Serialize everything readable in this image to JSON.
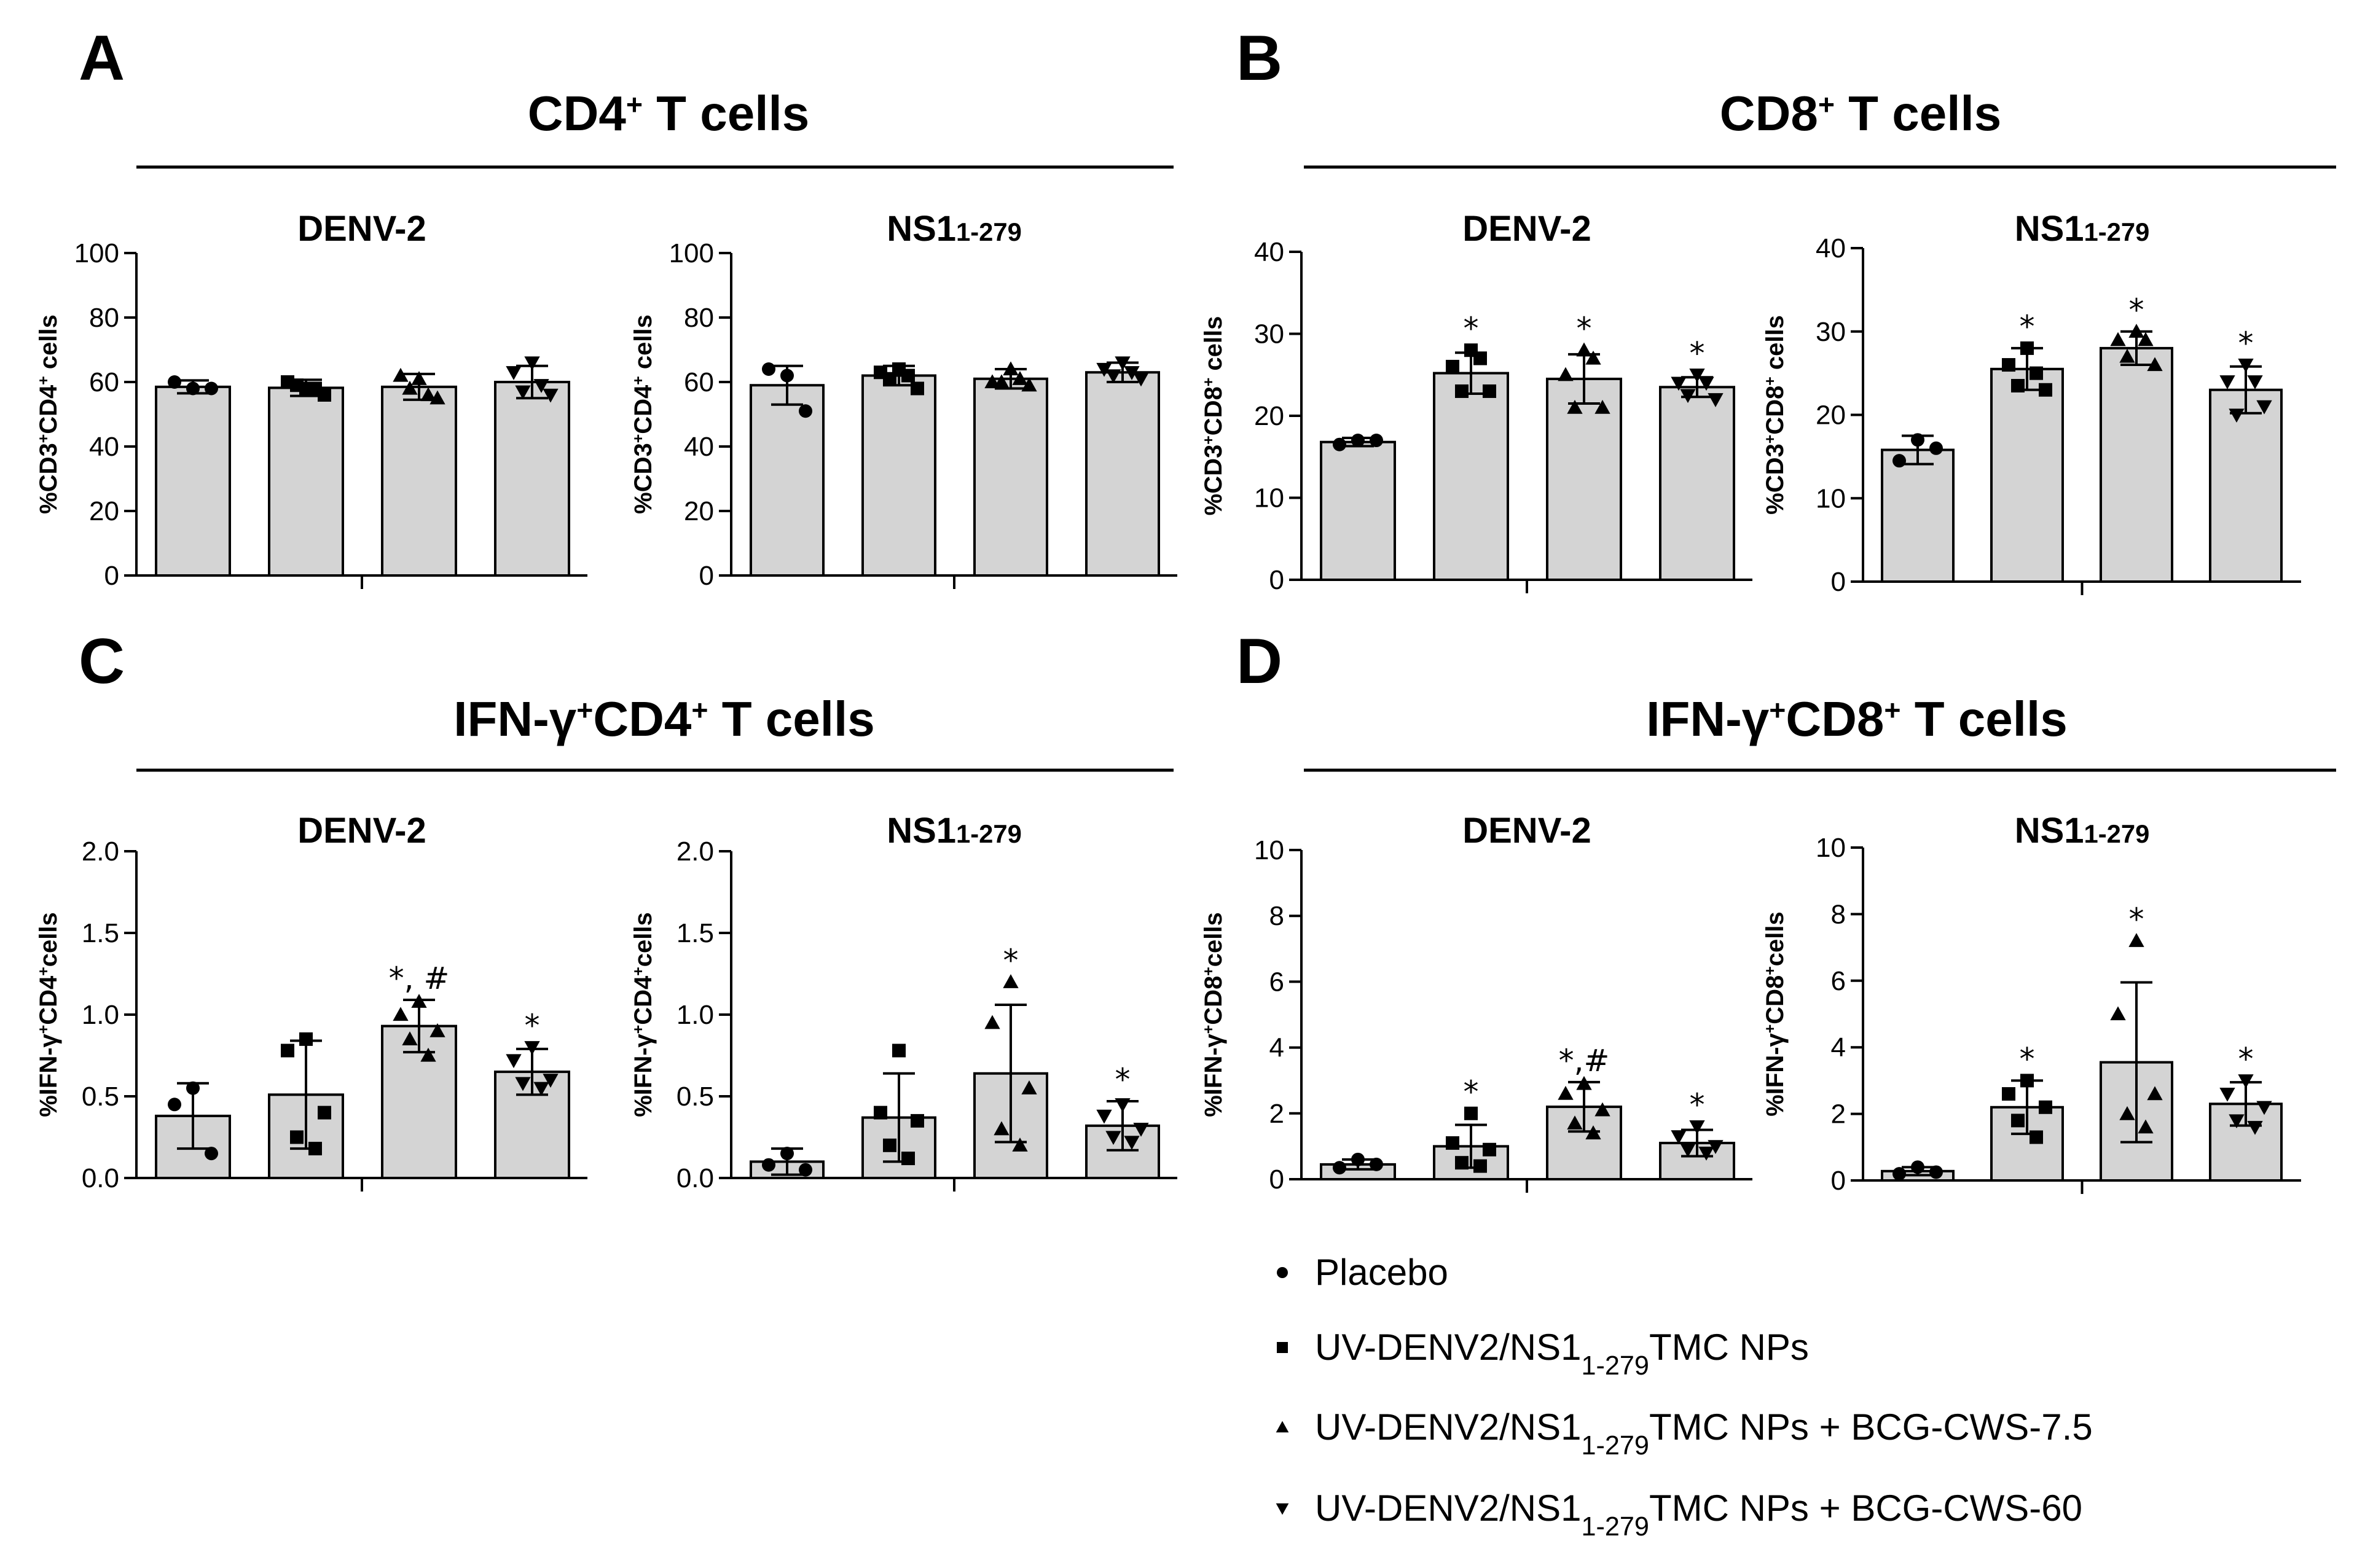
{
  "figure": {
    "panels": [
      {
        "letter": "A",
        "title_parts": [
          {
            "t": "CD4"
          },
          {
            "t": "+",
            "sup": true
          },
          {
            "t": " T cells"
          }
        ]
      },
      {
        "letter": "B",
        "title_parts": [
          {
            "t": "CD8"
          },
          {
            "t": "+",
            "sup": true
          },
          {
            "t": " T cells"
          }
        ]
      },
      {
        "letter": "C",
        "title_parts": [
          {
            "t": "IFN-γ"
          },
          {
            "t": "+",
            "sup": true
          },
          {
            "t": "CD4"
          },
          {
            "t": "+",
            "sup": true
          },
          {
            "t": " T cells"
          }
        ]
      },
      {
        "letter": "D",
        "title_parts": [
          {
            "t": "IFN-γ"
          },
          {
            "t": "+",
            "sup": true
          },
          {
            "t": "CD8"
          },
          {
            "t": "+",
            "sup": true
          },
          {
            "t": " T cells"
          }
        ]
      }
    ],
    "ylabel_parts": {
      "cd4": [
        {
          "t": "%CD3"
        },
        {
          "t": "+",
          "sup": true
        },
        {
          "t": "CD4"
        },
        {
          "t": "+",
          "sup": true
        },
        {
          "t": " cells"
        }
      ],
      "cd8": [
        {
          "t": "%CD3"
        },
        {
          "t": "+",
          "sup": true
        },
        {
          "t": "CD8"
        },
        {
          "t": "+",
          "sup": true
        },
        {
          "t": " cells"
        }
      ],
      "ifn_cd4": [
        {
          "t": "%IFN-γ"
        },
        {
          "t": "+",
          "sup": true
        },
        {
          "t": "CD4"
        },
        {
          "t": "+",
          "sup": true
        },
        {
          "t": "cells"
        }
      ],
      "ifn_cd8": [
        {
          "t": "%IFN-γ"
        },
        {
          "t": "+",
          "sup": true
        },
        {
          "t": "CD8"
        },
        {
          "t": "+",
          "sup": true
        },
        {
          "t": "cells"
        }
      ]
    },
    "subtitle_parts": {
      "denv": [
        {
          "t": "DENV-2"
        }
      ],
      "ns1": [
        {
          "t": "NS1"
        },
        {
          "t": "1-279",
          "small": true
        }
      ]
    }
  },
  "legend": {
    "items": [
      {
        "marker": "circle",
        "parts": [
          {
            "t": "Placebo"
          }
        ]
      },
      {
        "marker": "square",
        "parts": [
          {
            "t": "UV-DENV2/NS1"
          },
          {
            "t": "1-279",
            "sub": true
          },
          {
            "t": "TMC NPs"
          }
        ]
      },
      {
        "marker": "triangle",
        "parts": [
          {
            "t": "UV-DENV2/NS1"
          },
          {
            "t": "1-279",
            "sub": true
          },
          {
            "t": "TMC NPs + BCG-CWS-7.5"
          }
        ]
      },
      {
        "marker": "triangle-down",
        "parts": [
          {
            "t": "UV-DENV2/NS1"
          },
          {
            "t": "1-279",
            "sub": true
          },
          {
            "t": "TMC NPs + BCG-CWS-60"
          }
        ]
      }
    ]
  },
  "chart_data": [
    {
      "panel": "A",
      "subplot": "DENV-2",
      "type": "bar",
      "ylabel_key": "cd4",
      "subtitle_key": "denv",
      "ylim": [
        0,
        100
      ],
      "yticks": [
        "0",
        "20",
        "40",
        "60",
        "80",
        "100"
      ],
      "ytick_values": [
        0,
        20,
        40,
        60,
        80,
        100
      ],
      "groups": [
        {
          "marker": "circle",
          "mean": 58.5,
          "sd": 2,
          "points": [
            58,
            60,
            58
          ],
          "annotation": ""
        },
        {
          "marker": "square",
          "mean": 58.2,
          "sd": 2.5,
          "points": [
            58,
            60,
            56,
            59,
            58
          ],
          "annotation": ""
        },
        {
          "marker": "triangle",
          "mean": 58.5,
          "sd": 4,
          "points": [
            61,
            62,
            55,
            58,
            56
          ],
          "annotation": ""
        },
        {
          "marker": "triangle-down",
          "mean": 60,
          "sd": 5,
          "points": [
            66,
            63,
            56,
            57,
            59
          ],
          "annotation": ""
        }
      ]
    },
    {
      "panel": "A",
      "subplot": "NS1 1-279",
      "type": "bar",
      "ylabel_key": "cd4",
      "subtitle_key": "ns1",
      "ylim": [
        0,
        100
      ],
      "yticks": [
        "0",
        "20",
        "40",
        "60",
        "80",
        "100"
      ],
      "ytick_values": [
        0,
        20,
        40,
        60,
        80,
        100
      ],
      "groups": [
        {
          "marker": "circle",
          "mean": 59,
          "sd": 6,
          "points": [
            62,
            64,
            51
          ],
          "annotation": ""
        },
        {
          "marker": "square",
          "mean": 62,
          "sd": 3,
          "points": [
            64,
            63,
            58,
            61,
            62
          ],
          "annotation": ""
        },
        {
          "marker": "triangle",
          "mean": 61,
          "sd": 3,
          "points": [
            64,
            60,
            59,
            60,
            61
          ],
          "annotation": ""
        },
        {
          "marker": "triangle-down",
          "mean": 63,
          "sd": 3,
          "points": [
            66,
            64,
            61,
            62,
            63
          ],
          "annotation": ""
        }
      ]
    },
    {
      "panel": "B",
      "subplot": "DENV-2",
      "type": "bar",
      "ylabel_key": "cd8",
      "subtitle_key": "denv",
      "ylim": [
        0,
        40
      ],
      "yticks": [
        "0",
        "10",
        "20",
        "30",
        "40"
      ],
      "ytick_values": [
        0,
        10,
        20,
        30,
        40
      ],
      "groups": [
        {
          "marker": "circle",
          "mean": 16.8,
          "sd": 0.5,
          "points": [
            17,
            16.5,
            17
          ],
          "annotation": ""
        },
        {
          "marker": "square",
          "mean": 25.2,
          "sd": 2.5,
          "points": [
            28,
            26,
            23,
            23,
            27
          ],
          "annotation": "*"
        },
        {
          "marker": "triangle",
          "mean": 24.5,
          "sd": 3,
          "points": [
            28,
            25,
            21,
            21,
            27
          ],
          "annotation": "*"
        },
        {
          "marker": "triangle-down",
          "mean": 23.5,
          "sd": 1.2,
          "points": [
            25,
            24,
            22,
            22.5,
            24
          ],
          "annotation": "*"
        }
      ]
    },
    {
      "panel": "B",
      "subplot": "NS1 1-279",
      "type": "bar",
      "ylabel_key": "cd8",
      "subtitle_key": "ns1",
      "ylim": [
        0,
        40
      ],
      "yticks": [
        "0",
        "10",
        "20",
        "30",
        "40"
      ],
      "ytick_values": [
        0,
        10,
        20,
        30,
        40
      ],
      "groups": [
        {
          "marker": "circle",
          "mean": 15.8,
          "sd": 1.7,
          "points": [
            17,
            14.5,
            16
          ],
          "annotation": ""
        },
        {
          "marker": "square",
          "mean": 25.5,
          "sd": 2.5,
          "points": [
            28,
            26,
            23,
            23.5,
            25
          ],
          "annotation": "*"
        },
        {
          "marker": "triangle",
          "mean": 28,
          "sd": 2,
          "points": [
            30,
            29,
            26,
            27,
            29
          ],
          "annotation": "*"
        },
        {
          "marker": "triangle-down",
          "mean": 23,
          "sd": 2.8,
          "points": [
            26,
            24,
            21,
            20,
            24
          ],
          "annotation": "*"
        }
      ]
    },
    {
      "panel": "C",
      "subplot": "DENV-2",
      "type": "bar",
      "ylabel_key": "ifn_cd4",
      "subtitle_key": "denv",
      "ylim": [
        0,
        2
      ],
      "yticks": [
        "0.0",
        "0.5",
        "1.0",
        "1.5",
        "2.0"
      ],
      "ytick_values": [
        0,
        0.5,
        1.0,
        1.5,
        2.0
      ],
      "groups": [
        {
          "marker": "circle",
          "mean": 0.38,
          "sd": 0.2,
          "points": [
            0.55,
            0.45,
            0.15
          ],
          "annotation": ""
        },
        {
          "marker": "square",
          "mean": 0.51,
          "sd": 0.33,
          "points": [
            0.85,
            0.78,
            0.4,
            0.25,
            0.18
          ],
          "annotation": ""
        },
        {
          "marker": "triangle",
          "mean": 0.93,
          "sd": 0.16,
          "points": [
            1.08,
            1.0,
            0.9,
            0.85,
            0.75
          ],
          "annotation": "*, #"
        },
        {
          "marker": "triangle-down",
          "mean": 0.65,
          "sd": 0.14,
          "points": [
            0.8,
            0.72,
            0.6,
            0.58,
            0.55
          ],
          "annotation": "*"
        }
      ]
    },
    {
      "panel": "C",
      "subplot": "NS1 1-279",
      "type": "bar",
      "ylabel_key": "ifn_cd4",
      "subtitle_key": "ns1",
      "ylim": [
        0,
        2
      ],
      "yticks": [
        "0.0",
        "0.5",
        "1.0",
        "1.5",
        "2.0"
      ],
      "ytick_values": [
        0,
        0.5,
        1.0,
        1.5,
        2.0
      ],
      "groups": [
        {
          "marker": "circle",
          "mean": 0.1,
          "sd": 0.08,
          "points": [
            0.15,
            0.08,
            0.05
          ],
          "annotation": ""
        },
        {
          "marker": "square",
          "mean": 0.37,
          "sd": 0.27,
          "points": [
            0.78,
            0.4,
            0.35,
            0.2,
            0.12
          ],
          "annotation": ""
        },
        {
          "marker": "triangle",
          "mean": 0.64,
          "sd": 0.42,
          "points": [
            1.2,
            0.95,
            0.55,
            0.3,
            0.2
          ],
          "annotation": "*"
        },
        {
          "marker": "triangle-down",
          "mean": 0.32,
          "sd": 0.15,
          "points": [
            0.45,
            0.38,
            0.3,
            0.25,
            0.22
          ],
          "annotation": "*"
        }
      ]
    },
    {
      "panel": "D",
      "subplot": "DENV-2",
      "type": "bar",
      "ylabel_key": "ifn_cd8",
      "subtitle_key": "denv",
      "ylim": [
        0,
        10
      ],
      "yticks": [
        "0",
        "2",
        "4",
        "6",
        "8",
        "10"
      ],
      "ytick_values": [
        0,
        2,
        4,
        6,
        8,
        10
      ],
      "groups": [
        {
          "marker": "circle",
          "mean": 0.45,
          "sd": 0.15,
          "points": [
            0.6,
            0.35,
            0.45
          ],
          "annotation": ""
        },
        {
          "marker": "square",
          "mean": 1.0,
          "sd": 0.65,
          "points": [
            2.0,
            1.1,
            0.9,
            0.5,
            0.4
          ],
          "annotation": "*"
        },
        {
          "marker": "triangle",
          "mean": 2.2,
          "sd": 0.75,
          "points": [
            2.9,
            2.6,
            2.1,
            1.7,
            1.4
          ],
          "annotation": "*,#"
        },
        {
          "marker": "triangle-down",
          "mean": 1.1,
          "sd": 0.4,
          "points": [
            1.6,
            1.3,
            1.0,
            0.9,
            0.8
          ],
          "annotation": "*"
        }
      ]
    },
    {
      "panel": "D",
      "subplot": "NS1 1-279",
      "type": "bar",
      "ylabel_key": "ifn_cd8",
      "subtitle_key": "ns1",
      "ylim": [
        0,
        10
      ],
      "yticks": [
        "0",
        "2",
        "4",
        "6",
        "8",
        "10"
      ],
      "ytick_values": [
        0,
        2,
        4,
        6,
        8,
        10
      ],
      "groups": [
        {
          "marker": "circle",
          "mean": 0.28,
          "sd": 0.12,
          "points": [
            0.4,
            0.2,
            0.25
          ],
          "annotation": ""
        },
        {
          "marker": "square",
          "mean": 2.2,
          "sd": 0.8,
          "points": [
            3.0,
            2.6,
            2.2,
            1.8,
            1.3
          ],
          "annotation": "*"
        },
        {
          "marker": "triangle",
          "mean": 3.55,
          "sd": 2.4,
          "points": [
            7.2,
            5.0,
            2.6,
            2.0,
            1.6
          ],
          "annotation": "*"
        },
        {
          "marker": "triangle-down",
          "mean": 2.3,
          "sd": 0.65,
          "points": [
            3.0,
            2.6,
            2.2,
            1.8,
            1.6
          ],
          "annotation": "*"
        }
      ]
    }
  ]
}
